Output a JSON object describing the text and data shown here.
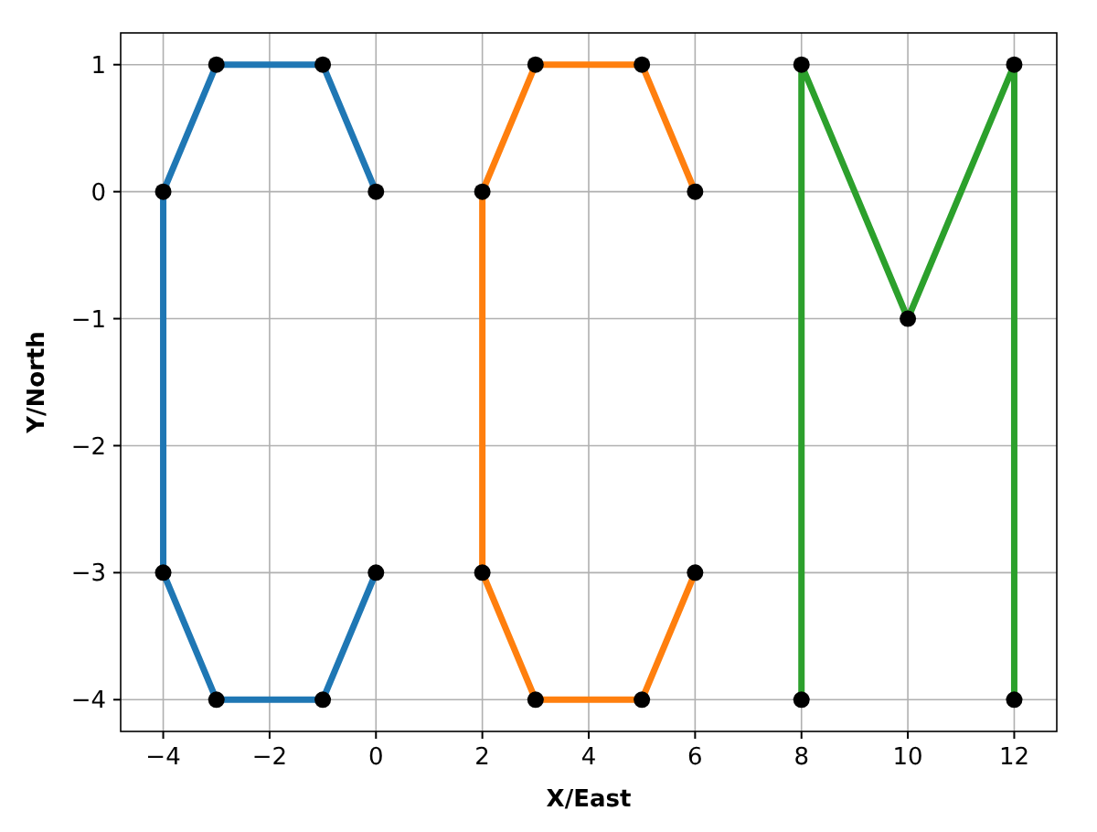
{
  "chart_data": {
    "type": "line",
    "xlabel": "X/East",
    "ylabel": "Y/North",
    "xlim": [
      -4.8,
      12.8
    ],
    "ylim": [
      -4.25,
      1.25
    ],
    "xticks": [
      {
        "value": -4,
        "label": "−4"
      },
      {
        "value": -2,
        "label": "−2"
      },
      0,
      2,
      4,
      6,
      8,
      10,
      12
    ],
    "yticks": [
      {
        "value": -4,
        "label": "−4"
      },
      {
        "value": -3,
        "label": "−3"
      },
      {
        "value": -2,
        "label": "−2"
      },
      {
        "value": -1,
        "label": "−1"
      },
      0,
      1
    ],
    "grid": true,
    "marker": "circle",
    "line_style": "solid",
    "series": [
      {
        "color": "#1f77b4",
        "x": [
          0,
          -1,
          -3,
          -4,
          -4,
          -3,
          -1,
          0
        ],
        "values": [
          0,
          1,
          1,
          0,
          -3,
          -4,
          -4,
          -3
        ]
      },
      {
        "color": "#ff7f0e",
        "x": [
          6,
          5,
          3,
          2,
          2,
          3,
          5,
          6
        ],
        "values": [
          0,
          1,
          1,
          0,
          -3,
          -4,
          -4,
          -3
        ]
      },
      {
        "color": "#2ca02c",
        "x": [
          8,
          8,
          10,
          12,
          12
        ],
        "values": [
          -4,
          1,
          -1,
          1,
          -4
        ]
      }
    ]
  }
}
